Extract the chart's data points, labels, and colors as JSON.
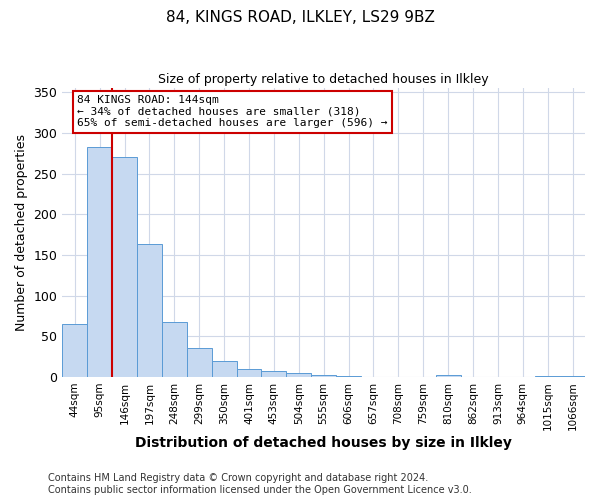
{
  "title": "84, KINGS ROAD, ILKLEY, LS29 9BZ",
  "subtitle": "Size of property relative to detached houses in Ilkley",
  "xlabel": "Distribution of detached houses by size in Ilkley",
  "ylabel": "Number of detached properties",
  "footer_line1": "Contains HM Land Registry data © Crown copyright and database right 2024.",
  "footer_line2": "Contains public sector information licensed under the Open Government Licence v3.0.",
  "bin_labels": [
    "44sqm",
    "95sqm",
    "146sqm",
    "197sqm",
    "248sqm",
    "299sqm",
    "350sqm",
    "401sqm",
    "453sqm",
    "504sqm",
    "555sqm",
    "606sqm",
    "657sqm",
    "708sqm",
    "759sqm",
    "810sqm",
    "862sqm",
    "913sqm",
    "964sqm",
    "1015sqm",
    "1066sqm"
  ],
  "bar_values": [
    65,
    282,
    270,
    163,
    67,
    35,
    20,
    10,
    7,
    5,
    3,
    1,
    0,
    0,
    0,
    2,
    0,
    0,
    0,
    1,
    1
  ],
  "bar_color": "#c6d9f1",
  "bar_edge_color": "#5a9bd5",
  "property_line_x": 1.5,
  "property_line_color": "#cc0000",
  "annotation_line1": "84 KINGS ROAD: 144sqm",
  "annotation_line2": "← 34% of detached houses are smaller (318)",
  "annotation_line3": "65% of semi-detached houses are larger (596) →",
  "annotation_box_edgecolor": "#cc0000",
  "ylim": [
    0,
    355
  ],
  "yticks": [
    0,
    50,
    100,
    150,
    200,
    250,
    300,
    350
  ],
  "grid_color": "#d0d8e8",
  "background_color": "#ffffff",
  "title_fontsize": 11,
  "subtitle_fontsize": 9,
  "xlabel_fontsize": 10,
  "ylabel_fontsize": 9,
  "tick_fontsize": 7.5,
  "annotation_fontsize": 8,
  "footer_fontsize": 7
}
